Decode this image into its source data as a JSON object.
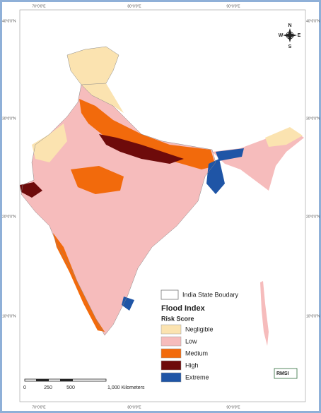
{
  "map": {
    "longitude_labels": [
      "70°0'0\"E",
      "80°0'0\"E",
      "90°0'0\"E"
    ],
    "latitude_labels": [
      "40°0'0\"N",
      "30°0'0\"N",
      "20°0'0\"N",
      "10°0'0\"N"
    ],
    "compass": [
      "N",
      "E",
      "S",
      "W"
    ],
    "legend": {
      "boundary": "India State Boudary",
      "title": "Flood Index",
      "subtitle": "Risk Score",
      "classes": [
        {
          "name": "Negligible",
          "color": "#fbe3b0"
        },
        {
          "name": "Low",
          "color": "#f6bcbc"
        },
        {
          "name": "Medium",
          "color": "#f26a0c"
        },
        {
          "name": "High",
          "color": "#6e0b0b"
        },
        {
          "name": "Extreme",
          "color": "#1f55a6"
        }
      ]
    },
    "scale_bar": {
      "labels": [
        "0",
        "250",
        "500",
        "1,000 Kilometers"
      ]
    },
    "logo": "RMSI"
  }
}
